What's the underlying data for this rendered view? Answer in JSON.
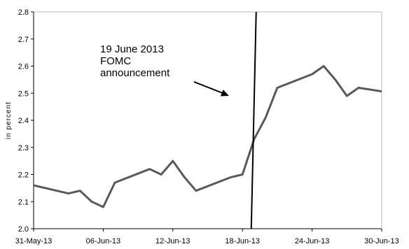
{
  "chart_data": {
    "type": "line",
    "ylabel": "in percent",
    "ylim": [
      2.0,
      2.8
    ],
    "yticks": [
      "2.0",
      "2.1",
      "2.2",
      "2.3",
      "2.4",
      "2.5",
      "2.6",
      "2.7",
      "2.8"
    ],
    "xlim": [
      "2013-05-31",
      "2013-06-30"
    ],
    "xticks": [
      {
        "date": "2013-05-31",
        "label": "31-May-13"
      },
      {
        "date": "2013-06-06",
        "label": "06-Jun-13"
      },
      {
        "date": "2013-06-12",
        "label": "12-Jun-13"
      },
      {
        "date": "2013-06-18",
        "label": "18-Jun-13"
      },
      {
        "date": "2013-06-24",
        "label": "24-Jun-13"
      },
      {
        "date": "2013-06-30",
        "label": "30-Jun-13"
      }
    ],
    "grid": false,
    "legend": "none",
    "series": [
      {
        "color": "#595959",
        "points": [
          {
            "x": "2013-05-31",
            "y": 2.16
          },
          {
            "x": "2013-06-03",
            "y": 2.13
          },
          {
            "x": "2013-06-04",
            "y": 2.14
          },
          {
            "x": "2013-06-05",
            "y": 2.1
          },
          {
            "x": "2013-06-06",
            "y": 2.08
          },
          {
            "x": "2013-06-07",
            "y": 2.17
          },
          {
            "x": "2013-06-10",
            "y": 2.22
          },
          {
            "x": "2013-06-11",
            "y": 2.2
          },
          {
            "x": "2013-06-12",
            "y": 2.25
          },
          {
            "x": "2013-06-13",
            "y": 2.19
          },
          {
            "x": "2013-06-14",
            "y": 2.14
          },
          {
            "x": "2013-06-17",
            "y": 2.19
          },
          {
            "x": "2013-06-18",
            "y": 2.2
          },
          {
            "x": "2013-06-19",
            "y": 2.33
          },
          {
            "x": "2013-06-20",
            "y": 2.41
          },
          {
            "x": "2013-06-21",
            "y": 2.52
          },
          {
            "x": "2013-06-24",
            "y": 2.57
          },
          {
            "x": "2013-06-25",
            "y": 2.6
          },
          {
            "x": "2013-06-26",
            "y": 2.55
          },
          {
            "x": "2013-06-27",
            "y": 2.49
          },
          {
            "x": "2013-06-28",
            "y": 2.52
          },
          {
            "x": "2013-07-01",
            "y": 2.5
          }
        ]
      }
    ],
    "event_line": {
      "date": "2013-06-19"
    },
    "annotation": {
      "lines": [
        "19 June 2013",
        "FOMC",
        "announcement"
      ],
      "arrow_target": {
        "x": "2013-06-19",
        "y": 2.5
      }
    },
    "colors": {
      "series": "#595959",
      "axes": "#000000",
      "event_line": "#000000"
    }
  }
}
